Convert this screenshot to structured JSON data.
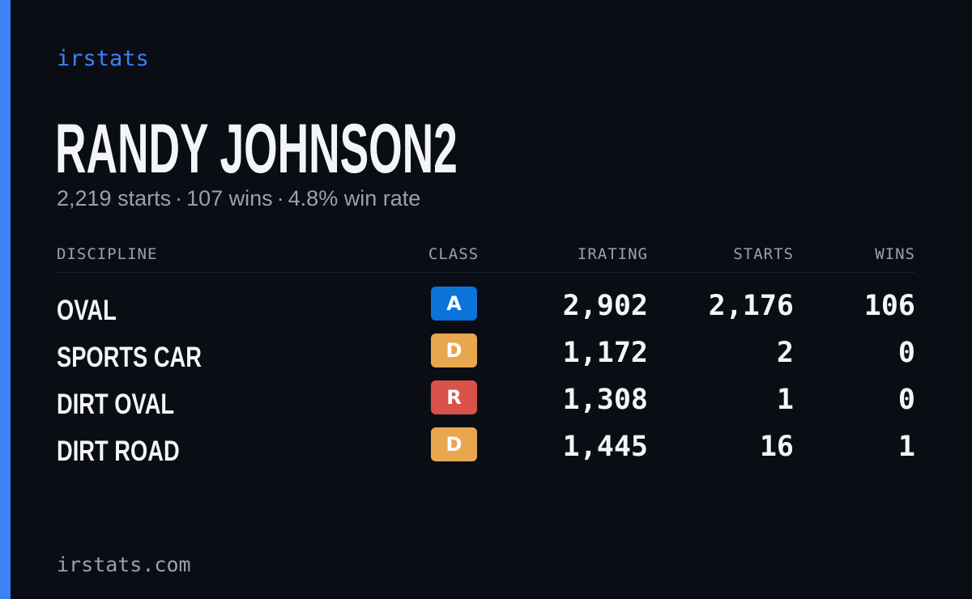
{
  "brand": "irstats",
  "player_name": "RANDY JOHNSON2",
  "summary": {
    "starts": "2,219 starts",
    "wins": "107 wins",
    "win_rate": "4.8% win rate",
    "separator": "·"
  },
  "table": {
    "headers": {
      "discipline": "DISCIPLINE",
      "class": "CLASS",
      "irating": "IRATING",
      "starts": "STARTS",
      "wins": "WINS"
    },
    "rows": [
      {
        "discipline": "OVAL",
        "class": "A",
        "class_color": "#0a74da",
        "irating": "2,902",
        "starts": "2,176",
        "wins": "106"
      },
      {
        "discipline": "SPORTS CAR",
        "class": "D",
        "class_color": "#e8a74e",
        "irating": "1,172",
        "starts": "2",
        "wins": "0"
      },
      {
        "discipline": "DIRT OVAL",
        "class": "R",
        "class_color": "#d9524a",
        "irating": "1,308",
        "starts": "1",
        "wins": "0"
      },
      {
        "discipline": "DIRT ROAD",
        "class": "D",
        "class_color": "#e8a74e",
        "irating": "1,445",
        "starts": "16",
        "wins": "1"
      }
    ]
  },
  "footer": "irstats.com",
  "colors": {
    "background": "#0a0d14",
    "accent": "#3b82f6",
    "muted_text": "#9aa1ad",
    "primary_text": "#f4f5f8"
  }
}
